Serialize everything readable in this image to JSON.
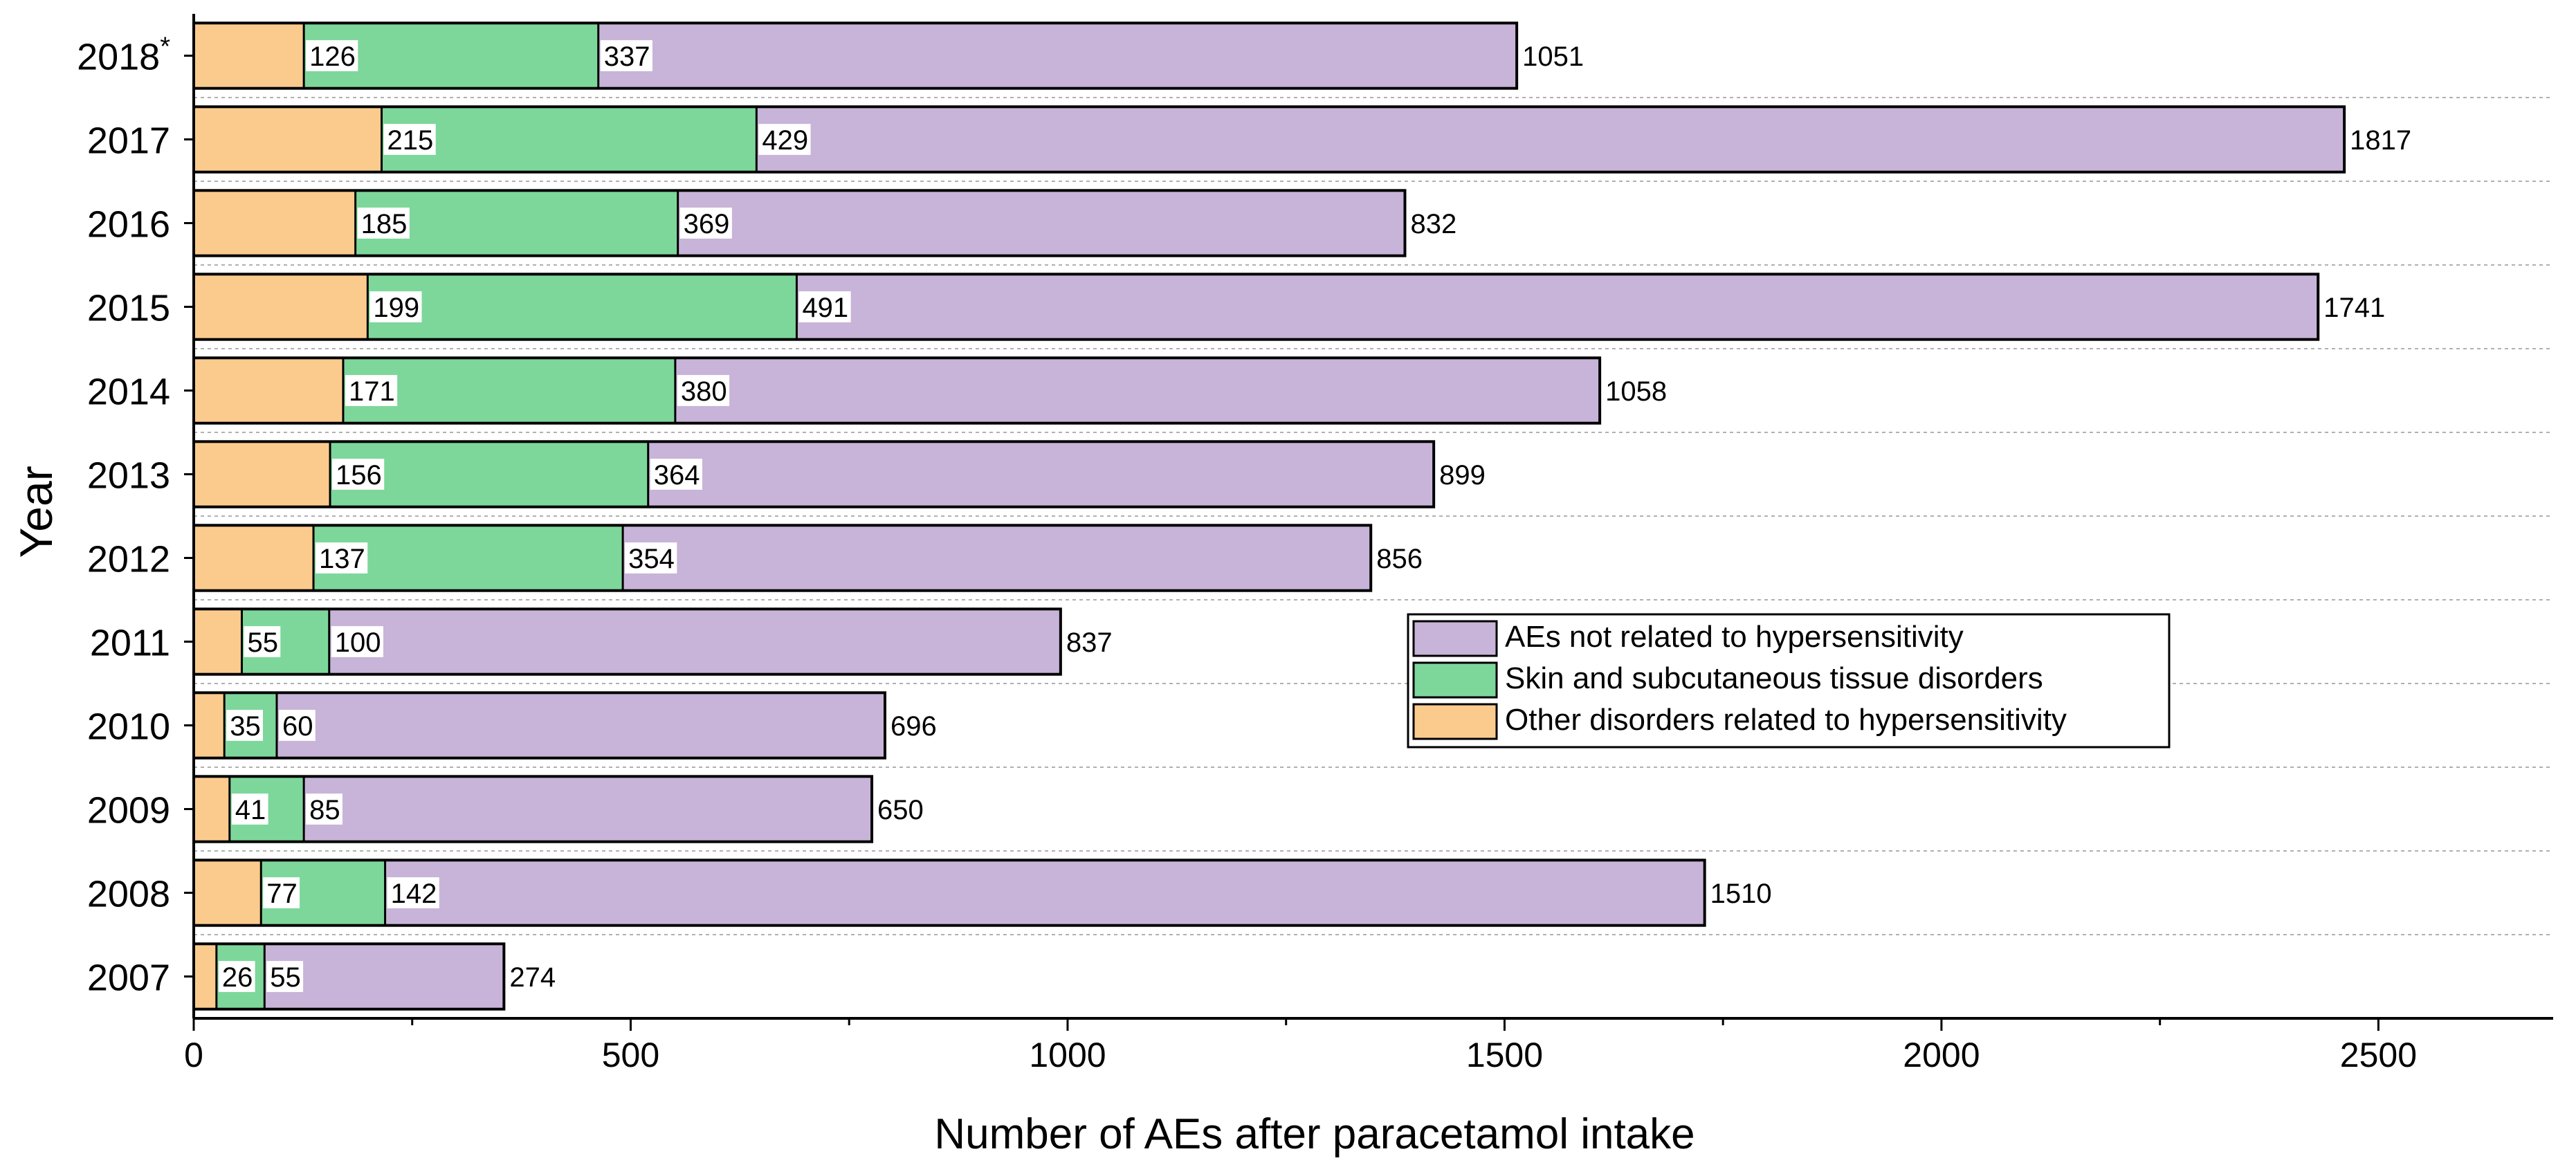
{
  "chart_data": {
    "type": "bar",
    "orientation": "horizontal",
    "stacked": true,
    "xlabel": "Number of AEs after paracetamol intake",
    "ylabel": "Year",
    "xlim": [
      0,
      2700
    ],
    "xticks": [
      0,
      500,
      1000,
      1500,
      2000,
      2500
    ],
    "grid": "horizontal dotted",
    "legend_position": "center-right",
    "categories": [
      "2018*",
      "2017",
      "2016",
      "2015",
      "2014",
      "2013",
      "2012",
      "2011",
      "2010",
      "2009",
      "2008",
      "2007"
    ],
    "series": [
      {
        "name": "Other disorders related to hypersensitivity",
        "color": "#FBCB8E",
        "values": [
          126,
          215,
          185,
          199,
          171,
          156,
          137,
          55,
          35,
          41,
          77,
          26
        ]
      },
      {
        "name": "Skin and subcutaneous tissue disorders",
        "color": "#7DD79A",
        "values": [
          337,
          429,
          369,
          491,
          380,
          364,
          354,
          100,
          60,
          85,
          142,
          55
        ]
      },
      {
        "name": "AEs not related to hypersensitivity",
        "color": "#C8B4D8",
        "values": [
          1051,
          1817,
          832,
          1741,
          1058,
          899,
          856,
          837,
          696,
          650,
          1510,
          274
        ]
      }
    ],
    "legend_order": [
      2,
      1,
      0
    ]
  }
}
